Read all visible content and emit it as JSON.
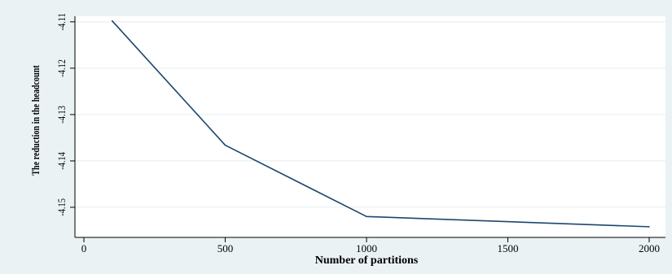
{
  "chart_data": {
    "type": "line",
    "title": "",
    "xlabel": "Number of partitions",
    "ylabel": "The reduction in the headcount",
    "x": [
      100,
      500,
      1000,
      2000
    ],
    "series": [
      {
        "values": [
          -4.1098,
          -4.1366,
          -4.152,
          -4.1542
        ]
      }
    ],
    "xlim": [
      0,
      2000
    ],
    "ylim": [
      -4.1565,
      -4.1095
    ],
    "xticks": [
      0,
      500,
      1000,
      1500,
      2000
    ],
    "xtick_labels": [
      "0",
      "500",
      "1000",
      "1500",
      "2000"
    ],
    "yticks": [
      -4.11,
      -4.12,
      -4.13,
      -4.14,
      -4.15
    ],
    "ytick_labels": [
      "-4.11",
      "-4.12",
      "-4.13",
      "-4.14",
      "-4.15"
    ],
    "grid": "horizontal",
    "legend": "none",
    "colors": {
      "background": "#eaf2f3",
      "plot_area": "#ffffff",
      "gridline": "#e3ecef",
      "line": "#1a476f",
      "axis": "#000000"
    }
  }
}
